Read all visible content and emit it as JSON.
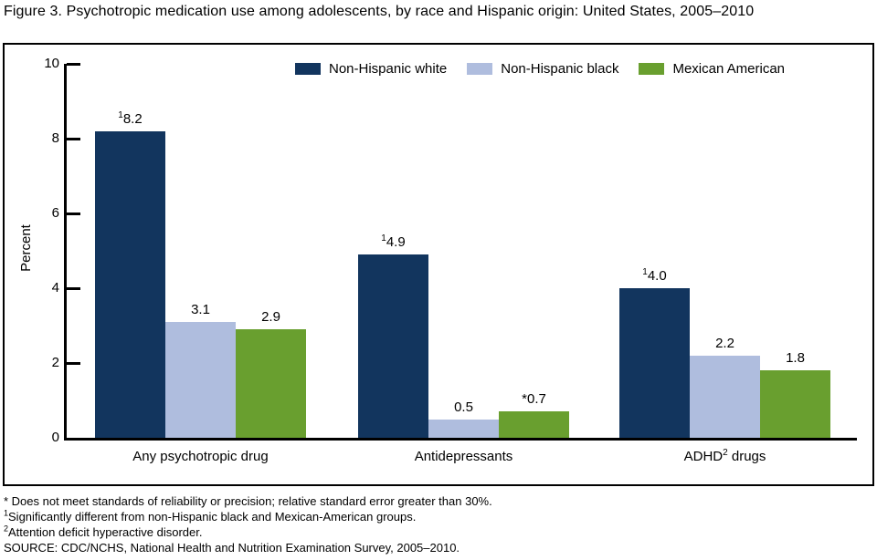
{
  "title": "Figure 3. Psychotropic medication use among adolescents, by race and Hispanic origin: United States, 2005–2010",
  "chart_data": {
    "type": "bar",
    "title": "Psychotropic medication use among adolescents, by race and Hispanic origin: United States, 2005–2010",
    "xlabel": "",
    "ylabel": "Percent",
    "ylim": [
      0,
      10
    ],
    "yticks": [
      0,
      2,
      4,
      6,
      8,
      10
    ],
    "grid": false,
    "legend_position": "top",
    "categories": [
      {
        "pre": "Any psychotropic drug",
        "sup": "",
        "post": ""
      },
      {
        "pre": "Antidepressants",
        "sup": "",
        "post": ""
      },
      {
        "pre": "ADHD",
        "sup": "2",
        "post": " drugs"
      }
    ],
    "series": [
      {
        "name": "Non-Hispanic white",
        "color": "#12355E",
        "values": [
          8.2,
          4.9,
          4.0
        ],
        "labels": [
          {
            "sup": "1",
            "text": "8.2"
          },
          {
            "sup": "1",
            "text": "4.9"
          },
          {
            "sup": "1",
            "text": "4.0"
          }
        ]
      },
      {
        "name": "Non-Hispanic black",
        "color": "#AFBDDE",
        "values": [
          3.1,
          0.5,
          2.2
        ],
        "labels": [
          {
            "sup": "",
            "text": "3.1"
          },
          {
            "sup": "",
            "text": "0.5"
          },
          {
            "sup": "",
            "text": "2.2"
          }
        ]
      },
      {
        "name": "Mexican American",
        "color": "#699F2F",
        "values": [
          2.9,
          0.7,
          1.8
        ],
        "labels": [
          {
            "sup": "",
            "text": "2.9"
          },
          {
            "sup": "",
            "text": "*0.7"
          },
          {
            "sup": "",
            "text": "1.8"
          }
        ]
      }
    ]
  },
  "footnotes": [
    {
      "marker": "",
      "text": "* Does not meet standards of reliability or precision; relative standard error greater than 30%."
    },
    {
      "marker": "1",
      "text": "Significantly different from non-Hispanic black and Mexican-American groups."
    },
    {
      "marker": "2",
      "text": "Attention deficit hyperactive disorder."
    },
    {
      "marker": "",
      "text": "SOURCE: CDC/NCHS, National Health and Nutrition Examination Survey, 2005–2010."
    }
  ]
}
